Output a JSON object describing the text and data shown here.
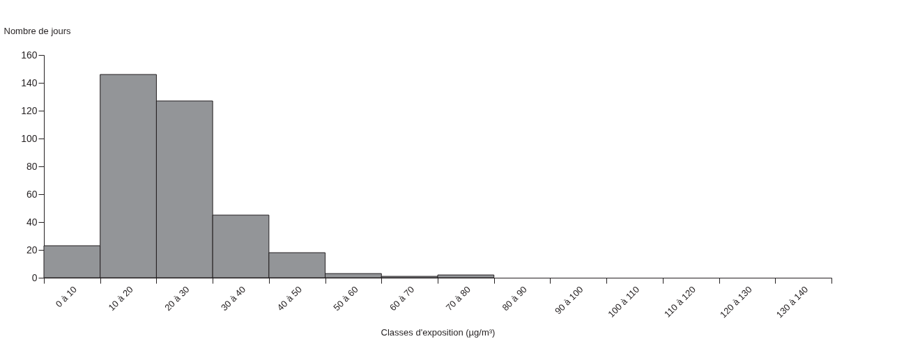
{
  "chart_data": {
    "type": "bar",
    "xlabel": "Classes d'exposition (µg/m³)",
    "ylabel": "Nombre de jours",
    "categories": [
      "0 à 10",
      "10 à 20",
      "20 à 30",
      "30 à 40",
      "40 à 50",
      "50 à 60",
      "60 à 70",
      "70 à 80",
      "80 à 90",
      "90 à 100",
      "100 à 110",
      "110 à 120",
      "120 à 130",
      "130 à 140"
    ],
    "values": [
      23,
      146,
      127,
      45,
      18,
      3,
      1,
      2,
      0,
      0,
      0,
      0,
      0,
      0
    ],
    "color": "#939598",
    "ylim": [
      0,
      160
    ],
    "yticks": [
      0,
      20,
      40,
      60,
      80,
      100,
      120,
      140,
      160
    ],
    "grid": false
  }
}
